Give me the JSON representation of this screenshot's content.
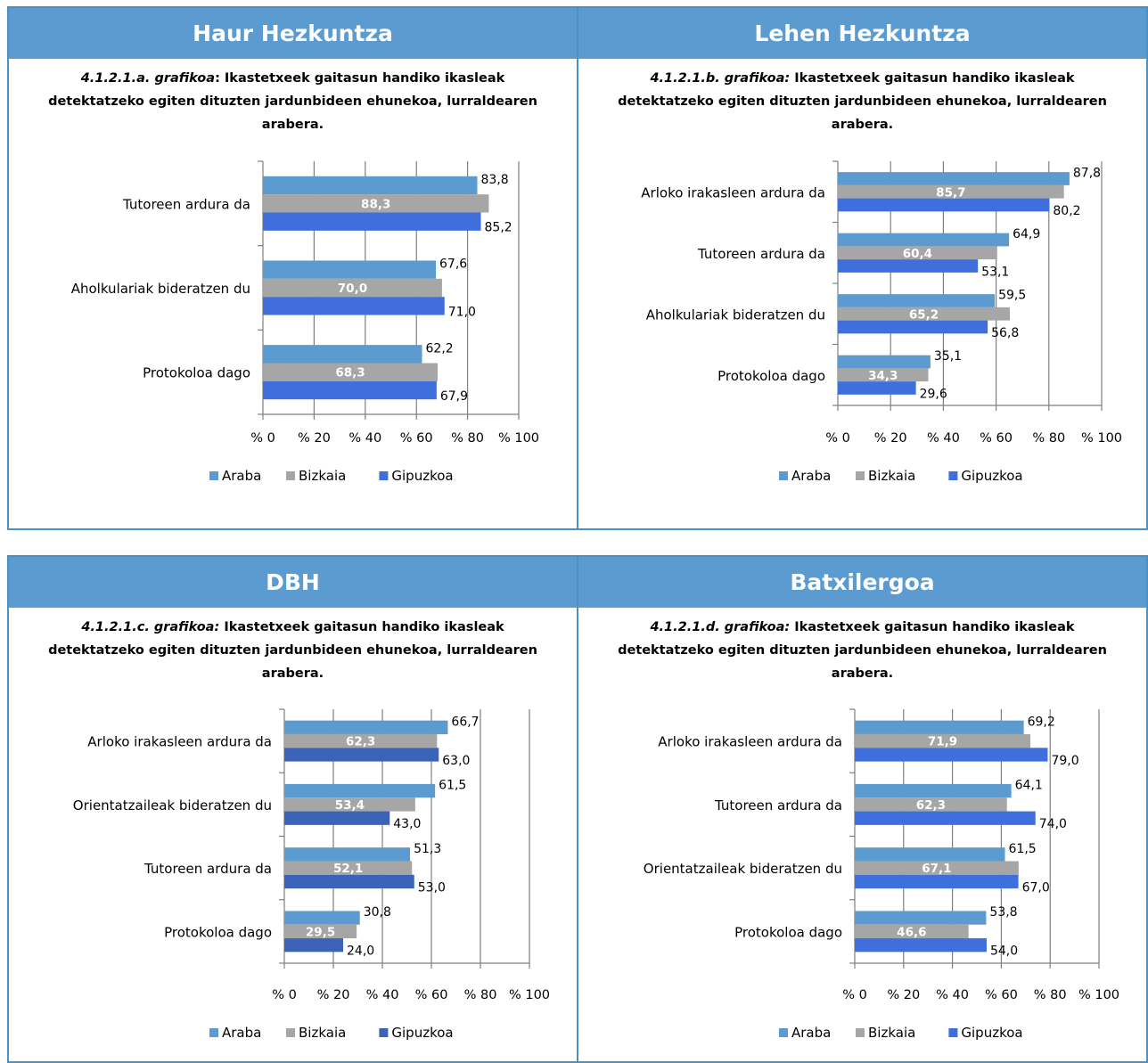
{
  "colors": {
    "araba": "#5b9bd0",
    "bizkaia": "#a6a6a6",
    "gipuzkoa": "#3f6fdc",
    "gipuzkoa_dbh": "#3b63b8",
    "header_bg": "#5b9bd0",
    "border": "#4a90c8"
  },
  "x_ticks": [
    "% 0",
    "% 20",
    "% 40",
    "% 60",
    "% 80",
    "% 100"
  ],
  "legend": [
    "Araba",
    "Bizkaia",
    "Gipuzkoa"
  ],
  "chart_data": [
    {
      "type": "bar",
      "orientation": "horizontal",
      "header": "Haur Hezkuntza",
      "ref": "4.1.2.1.a. grafikoa",
      "title": ": Ikastetxeek gaitasun handiko ikasleak detektatzeko egiten dituzten jardunbideen ehunekoa, lurraldearen arabera.",
      "xlim": [
        0,
        100
      ],
      "categories": [
        "Tutoreen ardura da",
        "Aholkulariak bideratzen du",
        "Protokoloa dago"
      ],
      "series": [
        {
          "name": "Araba",
          "values": [
            83.8,
            67.6,
            62.2
          ],
          "labels": [
            "83,8",
            "67,6",
            "62,2"
          ]
        },
        {
          "name": "Bizkaia",
          "values": [
            88.3,
            70.0,
            68.3
          ],
          "labels": [
            "88,3",
            "70,0",
            "68,3"
          ]
        },
        {
          "name": "Gipuzkoa",
          "values": [
            85.2,
            71.0,
            67.9
          ],
          "labels": [
            "85,2",
            "71,0",
            "67,9"
          ]
        }
      ]
    },
    {
      "type": "bar",
      "orientation": "horizontal",
      "header": "Lehen Hezkuntza",
      "ref": "4.1.2.1.b. grafikoa:",
      "title": " Ikastetxeek gaitasun handiko ikasleak detektatzeko egiten dituzten jardunbideen ehunekoa, lurraldearen arabera.",
      "xlim": [
        0,
        100
      ],
      "categories": [
        "Arloko irakasleen ardura da",
        "Tutoreen ardura da",
        "Aholkulariak bideratzen du",
        "Protokoloa dago"
      ],
      "series": [
        {
          "name": "Araba",
          "values": [
            87.8,
            64.9,
            59.5,
            35.1
          ],
          "labels": [
            "87,8",
            "64,9",
            "59,5",
            "35,1"
          ]
        },
        {
          "name": "Bizkaia",
          "values": [
            85.7,
            60.4,
            65.2,
            34.3
          ],
          "labels": [
            "85,7",
            "60,4",
            "65,2",
            "34,3"
          ]
        },
        {
          "name": "Gipuzkoa",
          "values": [
            80.2,
            53.1,
            56.8,
            29.6
          ],
          "labels": [
            "80,2",
            "53,1",
            "56,8",
            "29,6"
          ]
        }
      ]
    },
    {
      "type": "bar",
      "orientation": "horizontal",
      "header": "DBH",
      "ref": "4.1.2.1.c. grafikoa:",
      "title": " Ikastetxeek gaitasun handiko ikasleak detektatzeko egiten dituzten jardunbideen ehunekoa, lurraldearen arabera.",
      "xlim": [
        0,
        100
      ],
      "categories": [
        "Arloko irakasleen ardura da",
        "Orientatzaileak bideratzen du",
        "Tutoreen ardura da",
        "Protokoloa dago"
      ],
      "series": [
        {
          "name": "Araba",
          "values": [
            66.7,
            61.5,
            51.3,
            30.8
          ],
          "labels": [
            "66,7",
            "61,5",
            "51,3",
            "30,8"
          ]
        },
        {
          "name": "Bizkaia",
          "values": [
            62.3,
            53.4,
            52.1,
            29.5
          ],
          "labels": [
            "62,3",
            "53,4",
            "52,1",
            "29,5"
          ]
        },
        {
          "name": "Gipuzkoa",
          "values": [
            63.0,
            43.0,
            53.0,
            24.0
          ],
          "labels": [
            "63,0",
            "43,0",
            "53,0",
            "24,0"
          ]
        }
      ]
    },
    {
      "type": "bar",
      "orientation": "horizontal",
      "header": "Batxilergoa",
      "ref": "4.1.2.1.d. grafikoa:",
      "title": " Ikastetxeek gaitasun handiko ikasleak detektatzeko egiten dituzten jardunbideen ehunekoa, lurraldearen arabera.",
      "xlim": [
        0,
        100
      ],
      "categories": [
        "Arloko irakasleen ardura da",
        "Tutoreen ardura da",
        "Orientatzaileak bideratzen du",
        "Protokoloa dago"
      ],
      "series": [
        {
          "name": "Araba",
          "values": [
            69.2,
            64.1,
            61.5,
            53.8
          ],
          "labels": [
            "69,2",
            "64,1",
            "61,5",
            "53,8"
          ]
        },
        {
          "name": "Bizkaia",
          "values": [
            71.9,
            62.3,
            67.1,
            46.6
          ],
          "labels": [
            "71,9",
            "62,3",
            "67,1",
            "46,6"
          ]
        },
        {
          "name": "Gipuzkoa",
          "values": [
            79.0,
            74.0,
            67.0,
            54.0
          ],
          "labels": [
            "79,0",
            "74,0",
            "67,0",
            "54,0"
          ]
        }
      ]
    }
  ]
}
